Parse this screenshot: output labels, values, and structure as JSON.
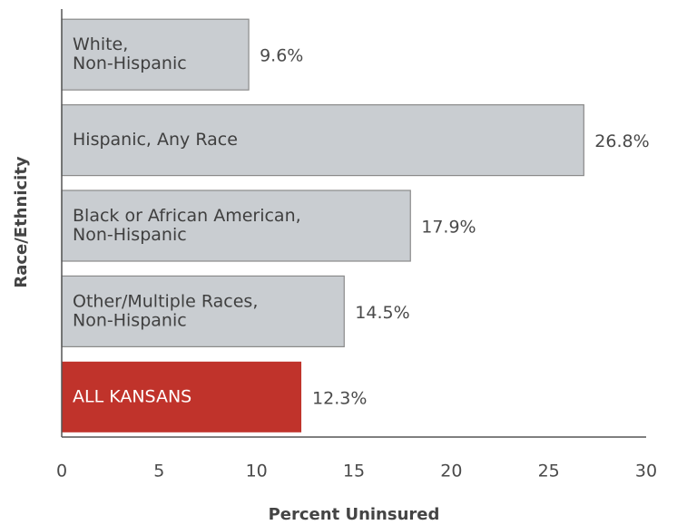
{
  "chart_data": {
    "type": "barh",
    "categories": [
      [
        "White,",
        "Non-Hispanic"
      ],
      [
        "Hispanic, Any Race"
      ],
      [
        "Black or African American,",
        "Non-Hispanic"
      ],
      [
        "Other/Multiple Races,",
        "Non-Hispanic"
      ],
      [
        "ALL KANSANS"
      ]
    ],
    "values": [
      9.6,
      26.8,
      17.9,
      14.5,
      12.3
    ],
    "value_labels": [
      "9.6%",
      "26.8%",
      "17.9%",
      "14.5%",
      "12.3%"
    ],
    "colors": [
      "#c9cdd1",
      "#c9cdd1",
      "#c9cdd1",
      "#c9cdd1",
      "#c0332b"
    ],
    "label_colors": [
      "#3f3f3f",
      "#3f3f3f",
      "#3f3f3f",
      "#3f3f3f",
      "#ffffff"
    ],
    "xlim": [
      0,
      30
    ],
    "xticks": [
      0,
      5,
      10,
      15,
      20,
      25,
      30
    ],
    "xlabel": "Percent Uninsured",
    "ylabel": "Race/Ethnicity",
    "grid": false
  }
}
